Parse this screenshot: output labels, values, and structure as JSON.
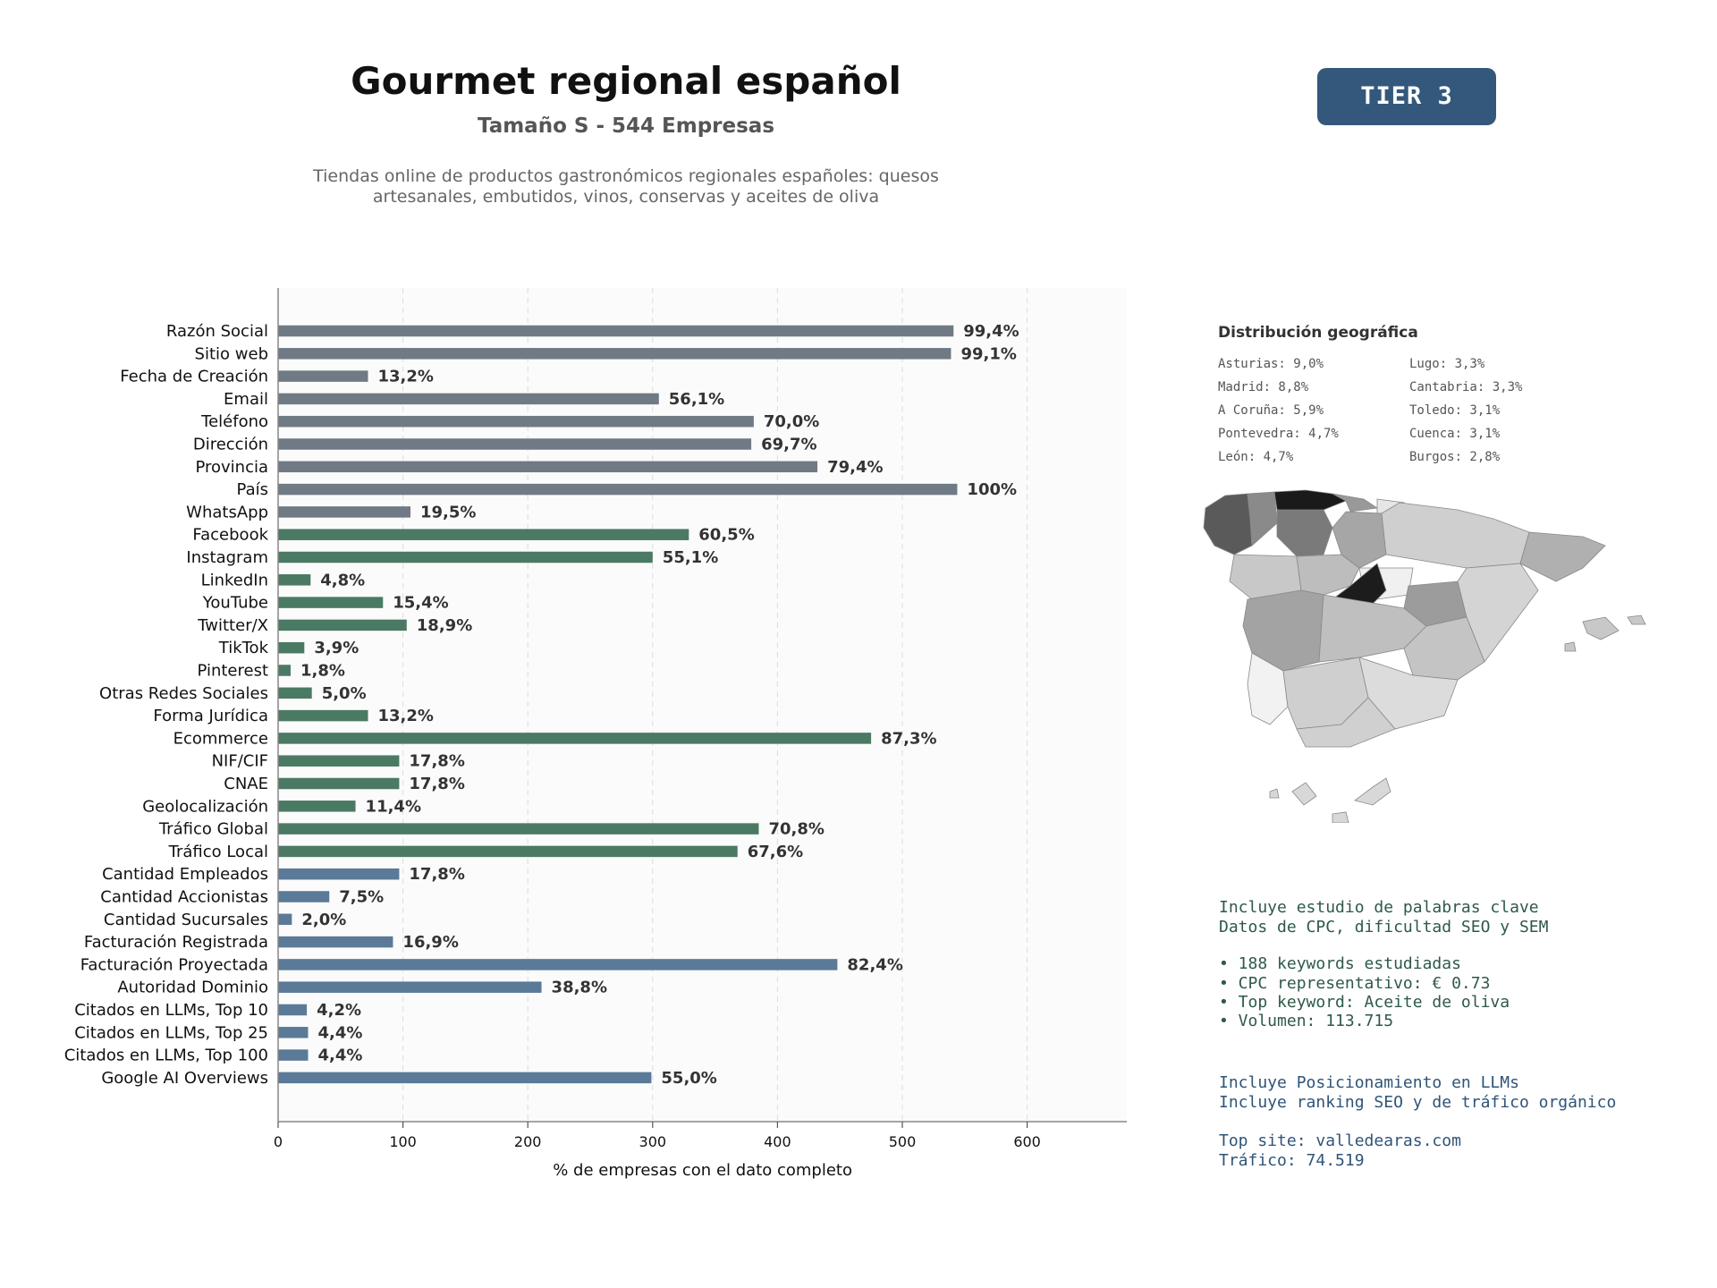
{
  "header": {
    "title": "Gourmet regional español",
    "subtitle": "Tamaño S - 544 Empresas",
    "description_line1": "Tiendas online de productos gastronómicos regionales españoles: quesos",
    "description_line2": "artesanales, embutidos, vinos, conservas y aceites de oliva",
    "tier_badge": "TIER 3"
  },
  "colors": {
    "gray": "#6f7a84",
    "green": "#4a7a64",
    "blue": "#5a7a98",
    "badge": "#34587c"
  },
  "chart_data": {
    "type": "bar",
    "orientation": "horizontal",
    "xlabel": "% de empresas con el dato completo",
    "xlim": [
      0,
      680
    ],
    "xticks": [
      0,
      100,
      200,
      300,
      400,
      500,
      600
    ],
    "grid": "vertical dashed",
    "categories": [
      "Razón Social",
      "Sitio web",
      "Fecha de Creación",
      "Email",
      "Teléfono",
      "Dirección",
      "Provincia",
      "País",
      "WhatsApp",
      "Facebook",
      "Instagram",
      "LinkedIn",
      "YouTube",
      "Twitter/X",
      "TikTok",
      "Pinterest",
      "Otras Redes Sociales",
      "Forma Jurídica",
      "Ecommerce",
      "NIF/CIF",
      "CNAE",
      "Geolocalización",
      "Tráfico Global",
      "Tráfico Local",
      "Cantidad Empleados",
      "Cantidad Accionistas",
      "Cantidad Sucursales",
      "Facturación Registrada",
      "Facturación Proyectada",
      "Autoridad Dominio",
      "Citados en LLMs, Top 10",
      "Citados en LLMs, Top 25",
      "Citados en LLMs, Top 100",
      "Google AI Overviews"
    ],
    "values": [
      541,
      539,
      72,
      305,
      381,
      379,
      432,
      544,
      106,
      329,
      300,
      26,
      84,
      103,
      21,
      10,
      27,
      72,
      475,
      97,
      97,
      62,
      385,
      368,
      97,
      41,
      11,
      92,
      448,
      211,
      23,
      24,
      24,
      299
    ],
    "labels": [
      "99,4%",
      "99,1%",
      "13,2%",
      "56,1%",
      "70,0%",
      "69,7%",
      "79,4%",
      "100%",
      "19,5%",
      "60,5%",
      "55,1%",
      "4,8%",
      "15,4%",
      "18,9%",
      "3,9%",
      "1,8%",
      "5,0%",
      "13,2%",
      "87,3%",
      "17,8%",
      "17,8%",
      "11,4%",
      "70,8%",
      "67,6%",
      "17,8%",
      "7,5%",
      "2,0%",
      "16,9%",
      "82,4%",
      "38,8%",
      "4,2%",
      "4,4%",
      "4,4%",
      "55,0%"
    ],
    "color_groups": [
      "gray",
      "gray",
      "gray",
      "gray",
      "gray",
      "gray",
      "gray",
      "gray",
      "gray",
      "green",
      "green",
      "green",
      "green",
      "green",
      "green",
      "green",
      "green",
      "green",
      "green",
      "green",
      "green",
      "green",
      "green",
      "green",
      "blue",
      "blue",
      "blue",
      "blue",
      "blue",
      "blue",
      "blue",
      "blue",
      "blue",
      "blue"
    ]
  },
  "geo": {
    "title": "Distribución geográfica",
    "items": [
      "Asturias: 9,0%",
      "Lugo: 3,3%",
      "Madrid: 8,8%",
      "Cantabria: 3,3%",
      "A Coruña: 5,9%",
      "Toledo: 3,1%",
      "Pontevedra: 4,7%",
      "Cuenca: 3,1%",
      "León: 4,7%",
      "Burgos: 2,8%"
    ]
  },
  "keywords": {
    "line1": "Incluye estudio de palabras clave",
    "line2": "Datos de CPC, dificultad SEO y SEM",
    "bullet1": "• 188 keywords estudiadas",
    "bullet2": "• CPC representativo: € 0.73",
    "bullet3": "• Top keyword: Aceite de oliva",
    "bullet4": "• Volumen: 113.715"
  },
  "llm": {
    "line1": "Incluye Posicionamiento en LLMs",
    "line2": "Incluye ranking SEO y de tráfico orgánico",
    "site": "Top site: valledearas.com",
    "traffic": "Tráfico: 74.519"
  }
}
